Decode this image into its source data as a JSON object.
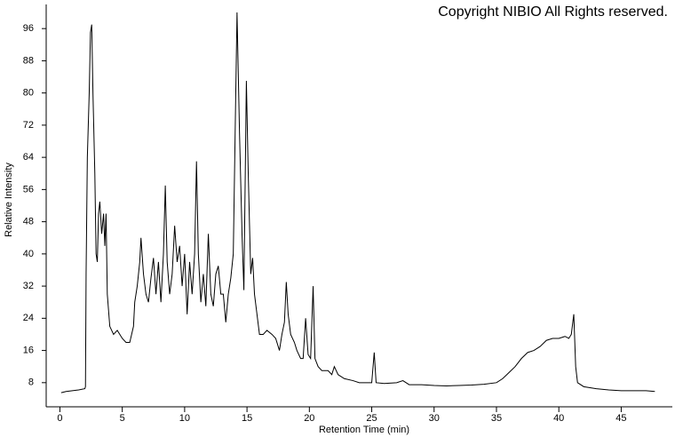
{
  "chart_data": {
    "type": "line",
    "annotation": "Copyright NIBIO All Rights reserved.",
    "xlabel": "Retention Time (min)",
    "ylabel": "Relative Intensity",
    "color": "#000000",
    "xlim": [
      -1.1,
      49.1
    ],
    "ylim": [
      2,
      102
    ],
    "xticks": [
      0,
      5,
      10,
      15,
      20,
      25,
      30,
      35,
      40,
      45
    ],
    "yticks": [
      8,
      16,
      24,
      32,
      40,
      48,
      56,
      64,
      72,
      80,
      88,
      96
    ],
    "x": [
      0.1,
      0.5,
      1,
      1.5,
      2,
      2.05,
      2.1,
      2.2,
      2.35,
      2.45,
      2.55,
      2.65,
      2.8,
      2.9,
      3.0,
      3.1,
      3.2,
      3.35,
      3.5,
      3.6,
      3.7,
      3.8,
      4.0,
      4.3,
      4.6,
      5.0,
      5.3,
      5.6,
      5.9,
      6.0,
      6.2,
      6.4,
      6.5,
      6.7,
      6.9,
      7.1,
      7.3,
      7.5,
      7.7,
      7.9,
      8.1,
      8.3,
      8.45,
      8.6,
      8.8,
      9.0,
      9.2,
      9.4,
      9.6,
      9.8,
      10.0,
      10.2,
      10.4,
      10.6,
      10.8,
      10.95,
      11.1,
      11.3,
      11.5,
      11.7,
      11.9,
      12.1,
      12.3,
      12.5,
      12.7,
      12.9,
      13.1,
      13.3,
      13.5,
      13.7,
      13.9,
      14.05,
      14.2,
      14.4,
      14.6,
      14.75,
      14.95,
      15.1,
      15.3,
      15.45,
      15.6,
      15.8,
      16.0,
      16.3,
      16.6,
      17.0,
      17.3,
      17.6,
      17.8,
      18.0,
      18.15,
      18.3,
      18.5,
      18.8,
      19.0,
      19.3,
      19.5,
      19.7,
      19.9,
      20.1,
      20.3,
      20.45,
      20.7,
      21,
      21.5,
      21.8,
      22,
      22.3,
      22.8,
      23.5,
      24,
      24.5,
      25,
      25.2,
      25.35,
      26,
      27,
      27.5,
      28,
      29,
      30,
      31,
      32,
      33,
      34,
      35,
      35.5,
      36,
      36.5,
      37,
      37.5,
      38,
      38.5,
      39,
      39.5,
      40,
      40.5,
      40.8,
      41.0,
      41.2,
      41.35,
      41.5,
      42,
      43,
      44,
      45,
      46,
      47,
      47.7
    ],
    "values": [
      5.5,
      5.8,
      6,
      6.2,
      6.5,
      7,
      35,
      64,
      80,
      95,
      97,
      80,
      60,
      40,
      38,
      50,
      53,
      45,
      50,
      42,
      50,
      30,
      22,
      20,
      21,
      19,
      18,
      18,
      22,
      28,
      32,
      38,
      44,
      35,
      30,
      28,
      34,
      39,
      30,
      38,
      28,
      40,
      57,
      38,
      30,
      35,
      47,
      38,
      42,
      32,
      40,
      25,
      38,
      30,
      40,
      63,
      40,
      28,
      35,
      27,
      45,
      30,
      27,
      35,
      37,
      30,
      30,
      23,
      30,
      34,
      40,
      70,
      100,
      70,
      45,
      31,
      83,
      60,
      35,
      39,
      30,
      25,
      20,
      20,
      21,
      20,
      19,
      16,
      20,
      23,
      33,
      25,
      20,
      18,
      16,
      14,
      14,
      24,
      15,
      14,
      32,
      14,
      12,
      11,
      11,
      10,
      12,
      10,
      9,
      8.5,
      8,
      8,
      8,
      15.5,
      8,
      7.8,
      8,
      8.5,
      7.5,
      7.5,
      7.3,
      7.2,
      7.3,
      7.4,
      7.6,
      8,
      9,
      10.5,
      12,
      14,
      15.5,
      16,
      17,
      18.5,
      19,
      19,
      19.5,
      19,
      20,
      25,
      12,
      8,
      7,
      6.5,
      6.2,
      6,
      6,
      6,
      5.8
    ]
  }
}
